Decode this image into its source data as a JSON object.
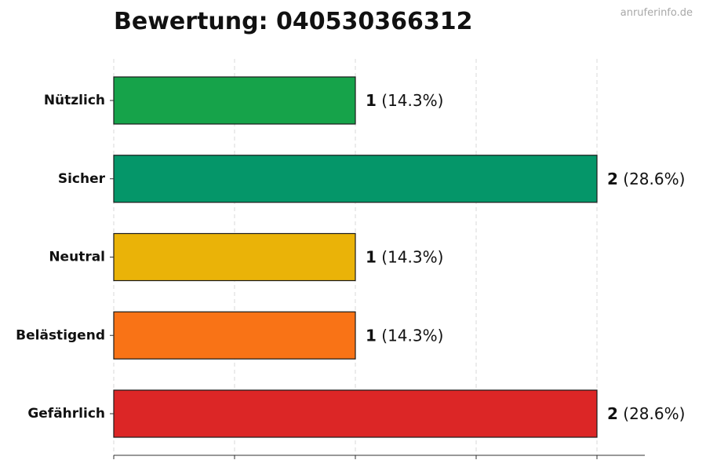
{
  "chart_data": {
    "type": "bar",
    "orientation": "horizontal",
    "title": "Bewertung: 040530366312",
    "categories": [
      "Nützlich",
      "Sicher",
      "Neutral",
      "Belästigend",
      "Gefährlich"
    ],
    "values": [
      1,
      2,
      1,
      1,
      2
    ],
    "percent_labels": [
      "(14.3%)",
      "(28.6%)",
      "(14.3%)",
      "(14.3%)",
      "(28.6%)"
    ],
    "colors": [
      "#16a34a",
      "#059669",
      "#eab308",
      "#f97316",
      "#dc2626"
    ],
    "xlim": [
      0,
      2.2
    ],
    "grid": true,
    "xlabel": "",
    "ylabel": ""
  },
  "watermark": "anruferinfo.de"
}
